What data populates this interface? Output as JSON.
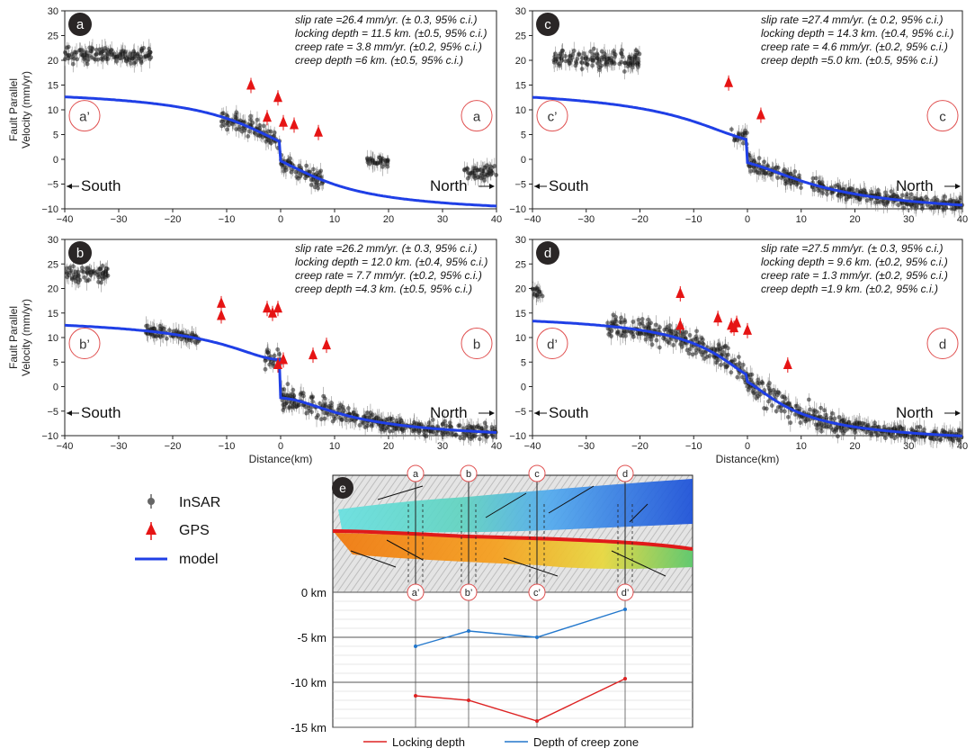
{
  "chart_data": [
    {
      "type": "scatter",
      "panel": "a",
      "ylabel": "Fault Parallel Velocity (mm/yr)",
      "xlabel": "",
      "xlim": [
        -40,
        40
      ],
      "ylim": [
        -10,
        30
      ],
      "xticks": [
        -40,
        -30,
        -20,
        -10,
        0,
        10,
        20,
        30,
        40
      ],
      "yticks": [
        -10,
        -5,
        0,
        5,
        10,
        15,
        20,
        25,
        30
      ],
      "annotations": [
        "slip rate =26.4 mm/yr. (± 0.3, 95% c.i.)",
        "locking depth = 11.5 km. (±0.5, 95% c.i.)",
        "creep rate = 3.8 mm/yr. (±0.2, 95% c.i.)",
        "creep depth =6 km. (±0.5, 95% c.i.)"
      ],
      "profile_left": "a’",
      "profile_right": "a",
      "left_direction": "South",
      "right_direction": "North",
      "model_params": {
        "slip_rate": 26.4,
        "locking_depth": 11.5,
        "creep_rate": 3.8,
        "creep_depth": 6
      },
      "series": [
        {
          "name": "GPS",
          "x": [
            -5.5,
            -2.5,
            -0.5,
            0.5,
            2.5,
            7
          ],
          "y": [
            15,
            8.5,
            12.5,
            7.5,
            7,
            5.5
          ]
        }
      ],
      "insar_segments": [
        [
          -40,
          -24,
          21,
          1.3
        ],
        [
          -11,
          8,
          null,
          1.5
        ],
        [
          16,
          20,
          -0.5,
          0.8
        ],
        [
          34,
          40,
          -2.5,
          1.2
        ]
      ]
    },
    {
      "type": "scatter",
      "panel": "c",
      "ylabel": "",
      "xlabel": "",
      "xlim": [
        -40,
        40
      ],
      "ylim": [
        -10,
        30
      ],
      "xticks": [
        -40,
        -30,
        -20,
        -10,
        0,
        10,
        20,
        30,
        40
      ],
      "yticks": [
        -10,
        -5,
        0,
        5,
        10,
        15,
        20,
        25,
        30
      ],
      "annotations": [
        "slip rate =27.4 mm/yr. (± 0.2, 95% c.i.)",
        "locking depth = 14.3 km. (±0.4, 95% c.i.)",
        "creep rate = 4.6 mm/yr. (±0.2, 95% c.i.)",
        "creep depth =5.0 km. (±0.5, 95% c.i.)"
      ],
      "profile_left": "c’",
      "profile_right": "c",
      "left_direction": "South",
      "right_direction": "North",
      "model_params": {
        "slip_rate": 27.4,
        "locking_depth": 14.3,
        "creep_rate": 4.6,
        "creep_depth": 5.0
      },
      "series": [
        {
          "name": "GPS",
          "x": [
            -3.5,
            2.5
          ],
          "y": [
            15.5,
            9
          ]
        }
      ],
      "insar_segments": [
        [
          -36,
          -20,
          20,
          1.5
        ],
        [
          -3,
          10,
          null,
          1.3
        ],
        [
          12,
          40,
          null,
          1.0
        ]
      ]
    },
    {
      "type": "scatter",
      "panel": "b",
      "ylabel": "Fault Parallel Velocity (mm/yr)",
      "xlabel": "Distance(km)",
      "xlim": [
        -40,
        40
      ],
      "ylim": [
        -10,
        30
      ],
      "xticks": [
        -40,
        -30,
        -20,
        -10,
        0,
        10,
        20,
        30,
        40
      ],
      "yticks": [
        -10,
        -5,
        0,
        5,
        10,
        15,
        20,
        25,
        30
      ],
      "annotations": [
        "slip rate =26.2 mm/yr. (± 0.3, 95% c.i.)",
        "locking depth = 12.0 km. (±0.4, 95% c.i.)",
        "creep rate = 7.7 mm/yr. (±0.2, 95% c.i.)",
        "creep depth =4.3 km. (±0.5, 95% c.i.)"
      ],
      "profile_left": "b’",
      "profile_right": "b",
      "left_direction": "South",
      "right_direction": "North",
      "model_params": {
        "slip_rate": 26.2,
        "locking_depth": 12.0,
        "creep_rate": 7.7,
        "creep_depth": 4.3
      },
      "series": [
        {
          "name": "GPS",
          "x": [
            -11,
            -11,
            -2.5,
            -1.5,
            -0.5,
            -0.5,
            0.5,
            6,
            8.5
          ],
          "y": [
            17,
            14.5,
            16,
            15,
            16,
            4.5,
            5.5,
            6.5,
            8.5
          ]
        }
      ],
      "insar_segments": [
        [
          -40,
          -32,
          23,
          1.5
        ],
        [
          -25,
          -15,
          null,
          1.0
        ],
        [
          -3,
          12,
          null,
          1.8
        ],
        [
          12,
          40,
          null,
          1.2
        ]
      ]
    },
    {
      "type": "scatter",
      "panel": "d",
      "ylabel": "",
      "xlabel": "Distance(km)",
      "xlim": [
        -40,
        40
      ],
      "ylim": [
        -10,
        30
      ],
      "xticks": [
        -40,
        -30,
        -20,
        -10,
        0,
        10,
        20,
        30,
        40
      ],
      "yticks": [
        -10,
        -5,
        0,
        5,
        10,
        15,
        20,
        25,
        30
      ],
      "annotations": [
        "slip rate =27.5 mm/yr. (± 0.3, 95% c.i.)",
        "locking depth = 9.6 km. (±0.2, 95% c.i.)",
        "creep rate = 1.3 mm/yr. (±0.2, 95% c.i.)",
        "creep depth =1.9 km. (±0.2, 95% c.i.)"
      ],
      "profile_left": "d’",
      "profile_right": "d",
      "left_direction": "South",
      "right_direction": "North",
      "model_params": {
        "slip_rate": 27.5,
        "locking_depth": 9.6,
        "creep_rate": 1.3,
        "creep_depth": 1.9
      },
      "series": [
        {
          "name": "GPS",
          "x": [
            -12.5,
            -12.5,
            -5.5,
            -3,
            -2.5,
            -2,
            0,
            7.5
          ],
          "y": [
            19,
            12.5,
            14,
            12.5,
            12,
            13,
            11.5,
            4.5
          ]
        }
      ],
      "insar_segments": [
        [
          -40,
          -38,
          19,
          1.2
        ],
        [
          -26,
          18,
          null,
          2.0
        ],
        [
          18,
          40,
          null,
          1.0
        ]
      ]
    },
    {
      "type": "line",
      "panel": "e",
      "categories": [
        "a’",
        "b’",
        "c’",
        "d’"
      ],
      "yticks": [
        "0 km",
        "-5 km",
        "-10 km",
        "-15 km"
      ],
      "ylim": [
        -15,
        0
      ],
      "series": [
        {
          "name": "Locking  depth",
          "values": [
            -11.5,
            -12.0,
            -14.3,
            -9.6
          ],
          "color": "#dd2222"
        },
        {
          "name": "Depth of creep zone",
          "values": [
            -6,
            -4.3,
            -5.0,
            -1.9
          ],
          "color": "#2277cc"
        }
      ],
      "map_profiles": [
        "a",
        "b",
        "c",
        "d"
      ]
    }
  ],
  "legend": {
    "insar": "InSAR",
    "gps": "GPS",
    "model": "model"
  },
  "colors": {
    "model": "#1f3fe6",
    "gps": "#e61414",
    "insar": "#555555"
  }
}
